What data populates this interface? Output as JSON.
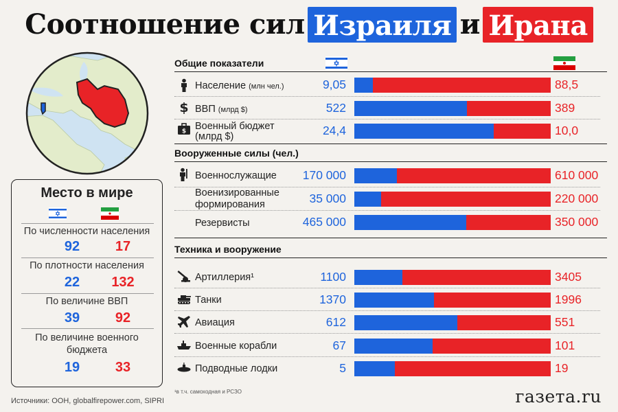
{
  "title": {
    "part1": "Соотношение сил",
    "israel": "Израиля",
    "conj": "и",
    "iran": "Ирана"
  },
  "colors": {
    "israel": "#1e64dc",
    "iran": "#e82327"
  },
  "rank": {
    "title": "Место в мире",
    "items": [
      {
        "label": "По численности населения",
        "israel": "92",
        "iran": "17"
      },
      {
        "label": "По плотности населения",
        "israel": "22",
        "iran": "132"
      },
      {
        "label": "По величине ВВП",
        "israel": "39",
        "iran": "92"
      },
      {
        "label1": "По величине военного",
        "label2": "бюджета",
        "israel": "19",
        "iran": "33"
      }
    ]
  },
  "sections": [
    {
      "title": "Общие показатели",
      "rows": [
        {
          "icon": "person-icon",
          "label": "Население",
          "unit": "(млн чел.)",
          "israel": "9,05",
          "iran": "88,5",
          "share": 0.093
        },
        {
          "icon": "dollar-icon",
          "label": "ВВП",
          "unit": "(млрд $)",
          "israel": "522",
          "iran": "389",
          "share": 0.573
        },
        {
          "icon": "briefcase-icon",
          "label1": "Военный бюджет",
          "label2": "(млрд $)",
          "israel": "24,4",
          "iran": "10,0",
          "share": 0.709
        }
      ]
    },
    {
      "title": "Вооруженные силы (чел.)",
      "rows": [
        {
          "icon": "soldier-icon",
          "label": "Военнослужащие",
          "israel": "170 000",
          "iran": "610 000",
          "share": 0.218
        },
        {
          "icon": "",
          "label1": "Военизированные",
          "label2": "формирования",
          "israel": "35 000",
          "iran": "220 000",
          "share": 0.137
        },
        {
          "icon": "",
          "label": "Резервисты",
          "israel": "465 000",
          "iran": "350 000",
          "share": 0.571
        }
      ]
    },
    {
      "title": "Техника и вооружение",
      "rows": [
        {
          "icon": "artillery-icon",
          "label": "Артиллерия¹",
          "israel": "1100",
          "iran": "3405",
          "share": 0.244
        },
        {
          "icon": "tank-icon",
          "label": "Танки",
          "israel": "1370",
          "iran": "1996",
          "share": 0.407
        },
        {
          "icon": "jet-icon",
          "label": "Авиация",
          "israel": "612",
          "iran": "551",
          "share": 0.526
        },
        {
          "icon": "warship-icon",
          "label": "Военные корабли",
          "israel": "67",
          "iran": "101",
          "share": 0.399
        },
        {
          "icon": "submarine-icon",
          "label": "Подводные лодки",
          "israel": "5",
          "iran": "19",
          "share": 0.208
        }
      ]
    }
  ],
  "footnote": "¹в т.ч. самоходная и РСЗО",
  "sources": "Источники: ООН, globalfirepower.com, SIPRI",
  "logo": "газета.ru"
}
